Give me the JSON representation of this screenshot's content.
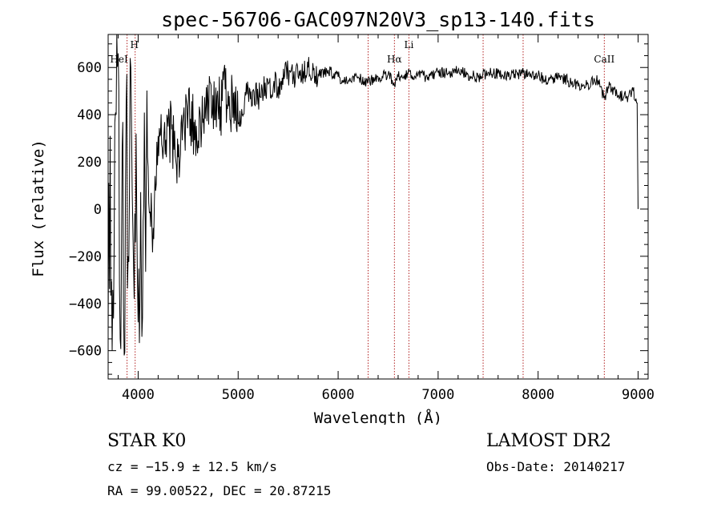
{
  "chart_data": {
    "type": "line",
    "title": "spec-56706-GAC097N20V3_sp13-140.fits",
    "xlabel": "Wavelength (Å)",
    "ylabel": "Flux (relative)",
    "xlim": [
      3700,
      9100
    ],
    "ylim": [
      -720,
      740
    ],
    "x_ticks": [
      4000,
      5000,
      6000,
      7000,
      8000,
      9000
    ],
    "y_ticks": [
      -600,
      -400,
      -200,
      0,
      200,
      400,
      600
    ],
    "grid": false,
    "line_color": "#000000",
    "marker_color": "#b22222",
    "spectral_lines": [
      {
        "label": "HeI",
        "x": 3889
      },
      {
        "label": "H",
        "x": 3970
      },
      {
        "label": "",
        "x": 6300
      },
      {
        "label": "Hα",
        "x": 6563
      },
      {
        "label": "Li",
        "x": 6708
      },
      {
        "label": "",
        "x": 7450
      },
      {
        "label": "",
        "x": 7850
      },
      {
        "label": "CaII",
        "x": 8662
      }
    ],
    "series": [
      {
        "x": [
          3700,
          3720,
          3740,
          3760,
          3780,
          3800,
          3820,
          3840,
          3860,
          3880,
          3900,
          3920,
          3940,
          3960,
          3980,
          4000,
          4050,
          4100,
          4150,
          4200,
          4300,
          4400,
          4500,
          4600,
          4700,
          4800,
          4900,
          5000,
          5100,
          5200,
          5300,
          5400,
          5500,
          5600,
          5700,
          5800,
          5900,
          6000,
          6100,
          6200,
          6300,
          6400,
          6500,
          6563,
          6600,
          6700,
          6800,
          6900,
          7000,
          7100,
          7200,
          7300,
          7400,
          7500,
          7600,
          7700,
          7800,
          7900,
          8000,
          8100,
          8200,
          8300,
          8400,
          8500,
          8600,
          8662,
          8700,
          8800,
          8900,
          8950,
          8990,
          9000
        ],
        "y": [
          -520,
          310,
          -600,
          -150,
          400,
          660,
          -550,
          260,
          -620,
          450,
          -200,
          640,
          80,
          -380,
          320,
          -480,
          -50,
          180,
          -80,
          310,
          350,
          220,
          430,
          290,
          460,
          420,
          500,
          360,
          510,
          470,
          530,
          520,
          580,
          560,
          600,
          570,
          590,
          560,
          540,
          560,
          540,
          560,
          570,
          525,
          560,
          575,
          570,
          560,
          580,
          575,
          590,
          570,
          560,
          580,
          575,
          560,
          575,
          570,
          565,
          540,
          560,
          545,
          520,
          530,
          545,
          470,
          520,
          480,
          475,
          500,
          450,
          0
        ]
      }
    ]
  },
  "info": {
    "star_class": "STAR    K0",
    "survey": "LAMOST DR2",
    "cz": "cz = −15.9 ± 12.5 km/s",
    "obs_date": "Obs-Date: 20140217",
    "radec": "RA =  99.00522, DEC =  20.87215"
  }
}
